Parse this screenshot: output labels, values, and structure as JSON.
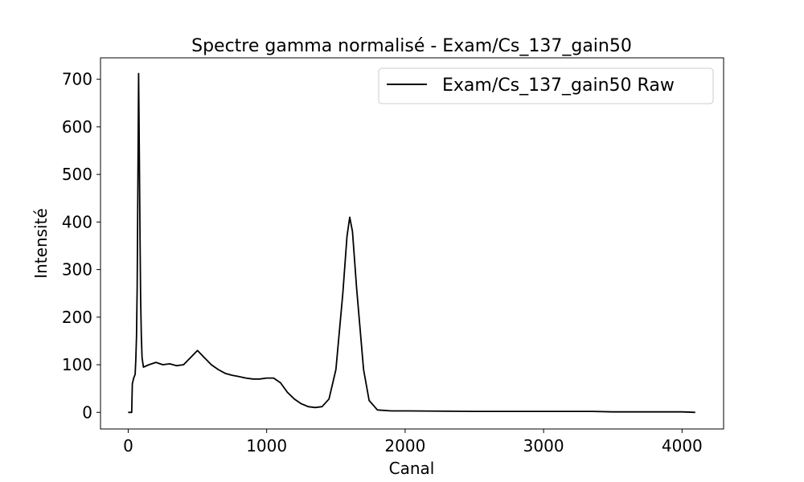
{
  "chart_data": {
    "type": "line",
    "title": "Spectre gamma normalisé - Exam/Cs_137_gain50",
    "xlabel": "Canal",
    "ylabel": "Intensité",
    "xlim": [
      -200,
      4300
    ],
    "ylim": [
      -35,
      745
    ],
    "xticks": [
      0,
      1000,
      2000,
      3000,
      4000
    ],
    "yticks": [
      0,
      100,
      200,
      300,
      400,
      500,
      600,
      700
    ],
    "grid": false,
    "legend": {
      "position": "top-right"
    },
    "series": [
      {
        "name": "Exam/Cs_137_gain50 Raw",
        "color": "#000000",
        "points": [
          [
            0,
            0
          ],
          [
            25,
            0
          ],
          [
            30,
            60
          ],
          [
            40,
            72
          ],
          [
            50,
            80
          ],
          [
            55,
            110
          ],
          [
            60,
            160
          ],
          [
            65,
            260
          ],
          [
            70,
            480
          ],
          [
            75,
            712
          ],
          [
            80,
            560
          ],
          [
            85,
            380
          ],
          [
            90,
            240
          ],
          [
            95,
            160
          ],
          [
            100,
            115
          ],
          [
            110,
            95
          ],
          [
            150,
            100
          ],
          [
            200,
            105
          ],
          [
            250,
            100
          ],
          [
            300,
            102
          ],
          [
            350,
            98
          ],
          [
            400,
            100
          ],
          [
            450,
            115
          ],
          [
            500,
            130
          ],
          [
            550,
            115
          ],
          [
            600,
            100
          ],
          [
            650,
            90
          ],
          [
            700,
            82
          ],
          [
            750,
            78
          ],
          [
            800,
            75
          ],
          [
            850,
            72
          ],
          [
            900,
            70
          ],
          [
            950,
            70
          ],
          [
            1000,
            72
          ],
          [
            1050,
            72
          ],
          [
            1100,
            62
          ],
          [
            1150,
            42
          ],
          [
            1200,
            28
          ],
          [
            1250,
            18
          ],
          [
            1300,
            12
          ],
          [
            1350,
            10
          ],
          [
            1400,
            12
          ],
          [
            1450,
            28
          ],
          [
            1500,
            90
          ],
          [
            1550,
            250
          ],
          [
            1580,
            370
          ],
          [
            1600,
            410
          ],
          [
            1620,
            380
          ],
          [
            1650,
            260
          ],
          [
            1700,
            90
          ],
          [
            1740,
            25
          ],
          [
            1800,
            5
          ],
          [
            1900,
            3
          ],
          [
            2000,
            3
          ],
          [
            2500,
            2
          ],
          [
            3000,
            2
          ],
          [
            3350,
            2
          ],
          [
            3500,
            1
          ],
          [
            4000,
            1
          ],
          [
            4095,
            0
          ]
        ]
      }
    ]
  }
}
